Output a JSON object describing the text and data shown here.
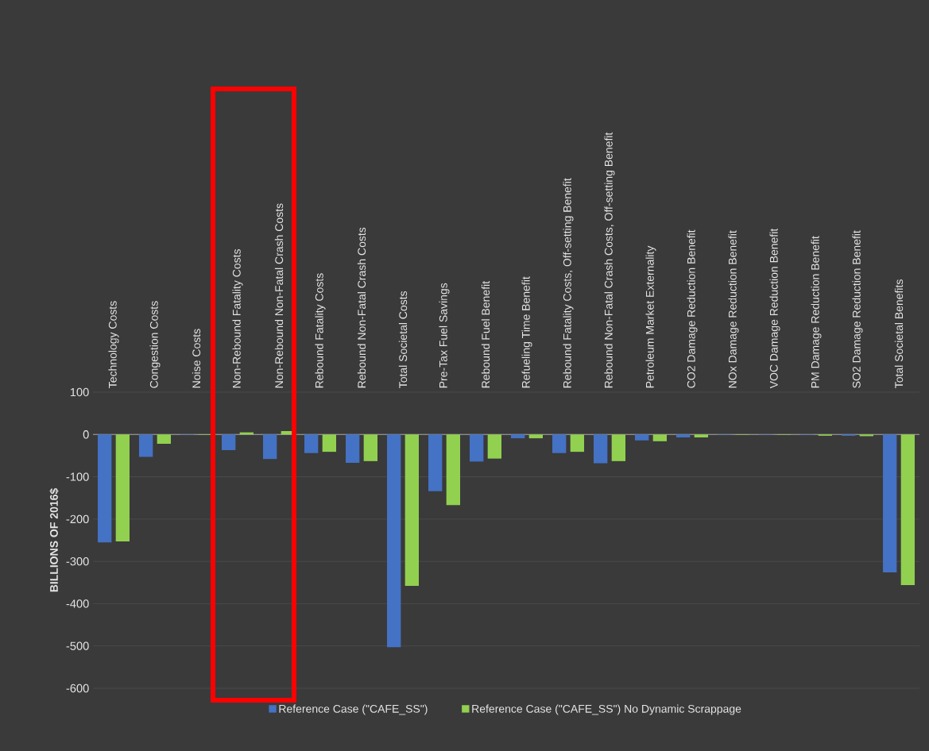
{
  "chart_data": {
    "type": "bar",
    "ylabel": "BILLIONS OF 2016$",
    "categories": [
      "Technology Costs",
      "Congestion Costs",
      "Noise Costs",
      "Non-Rebound Fatality Costs",
      "Non-Rebound Non-Fatal Crash Costs",
      "Rebound Fatality Costs",
      "Rebound Non-Fatal Crash Costs",
      "Total Societal Costs",
      "Pre-Tax Fuel Savings",
      "Rebound Fuel Benefit",
      "Refueling Time Benefit",
      "Rebound Fatality Costs, Off-setting Benefit",
      "Rebound Non-Fatal Crash Costs, Off-setting Benefit",
      "Petroleum Market Externality",
      "CO2 Damage Reduction Benefit",
      "NOx Damage Reduction Benefit",
      "VOC Damage Reduction Benefit",
      "PM Damage Reduction Benefit",
      "SO2 Damage Reduction Benefit",
      "Total Societal Benefits"
    ],
    "series": [
      {
        "name": "Reference Case (\"CAFE_SS\")",
        "color": "#4472c4",
        "values": [
          -255,
          -53,
          -1,
          -37,
          -58,
          -44,
          -67,
          -503,
          -134,
          -64,
          -9,
          -44,
          -68,
          -14,
          -7,
          -1,
          -1,
          -1,
          -3,
          -326
        ]
      },
      {
        "name": "Reference Case (\"CAFE_SS\") No Dynamic Scrappage",
        "color": "#92d050",
        "values": [
          -253,
          -22,
          -1,
          5,
          8,
          -41,
          -63,
          -358,
          -167,
          -57,
          -9,
          -41,
          -63,
          -16,
          -7,
          -1,
          -1,
          -3,
          -4,
          -356
        ]
      }
    ],
    "ylim": [
      -600,
      100
    ],
    "yticks": [
      100,
      0,
      -100,
      -200,
      -300,
      -400,
      -500,
      -600
    ],
    "grid": "y",
    "legend": "bottom"
  }
}
